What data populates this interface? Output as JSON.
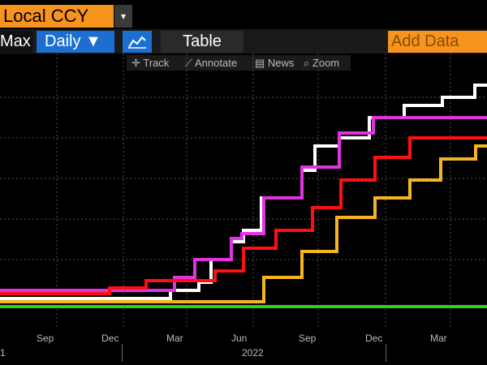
{
  "header": {
    "currency_field": "Local CCY",
    "currency_dropdown_icon": "triangle-down-icon"
  },
  "toolbar": {
    "range_label": "Max",
    "frequency_label": "Daily ▼",
    "chart_toggle_icon": "line-chart-icon",
    "table_label": "Table",
    "add_data_label": "Add Data"
  },
  "subtools": {
    "track": "Track",
    "annotate": "Annotate",
    "news": "News",
    "zoom": "Zoom"
  },
  "axis": {
    "month_ticks": [
      "Sep",
      "Dec",
      "Mar",
      "Jun",
      "Sep",
      "Dec",
      "Mar"
    ],
    "year_label": "2022",
    "left_partial_year": "1"
  },
  "colors": {
    "white": "#ffffff",
    "magenta": "#e233e2",
    "red": "#ff1010",
    "orange": "#f5b51e",
    "green": "#33cc22",
    "accent": "#f7941d",
    "blue": "#1c6fd1"
  },
  "chart_data": {
    "type": "line",
    "series": [
      {
        "x": [
          0,
          210,
          210,
          245,
          245,
          260,
          260,
          285,
          285,
          300,
          300,
          322,
          322,
          340,
          340,
          372,
          372,
          388,
          388,
          418,
          418,
          455,
          455,
          498,
          498,
          545,
          545,
          585,
          585,
          600
        ],
        "y": [
          368,
          368,
          358,
          358,
          348,
          348,
          320,
          320,
          298,
          298,
          284,
          284,
          244,
          244,
          244,
          244,
          210,
          210,
          180,
          180,
          170,
          170,
          145,
          145,
          130,
          130,
          120,
          120,
          105,
          105
        ]
      },
      {
        "x": [
          0,
          135,
          135,
          215,
          215,
          240,
          240,
          285,
          285,
          298,
          298,
          325,
          325,
          372,
          372,
          418,
          418,
          460,
          460,
          600
        ],
        "y": [
          358,
          358,
          358,
          358,
          342,
          342,
          320,
          320,
          294,
          294,
          288,
          288,
          244,
          244,
          206,
          206,
          164,
          164,
          145,
          145
        ]
      },
      {
        "x": [
          0,
          135,
          135,
          180,
          180,
          265,
          265,
          300,
          300,
          340,
          340,
          385,
          385,
          420,
          420,
          462,
          462,
          505,
          505,
          600
        ],
        "y": [
          362,
          362,
          355,
          355,
          346,
          346,
          334,
          334,
          306,
          306,
          284,
          284,
          256,
          256,
          222,
          222,
          194,
          194,
          170,
          170
        ]
      },
      {
        "x": [
          0,
          325,
          325,
          372,
          372,
          415,
          415,
          462,
          462,
          505,
          505,
          543,
          543,
          586,
          586,
          600
        ],
        "y": [
          372,
          372,
          342,
          342,
          310,
          310,
          268,
          268,
          244,
          244,
          222,
          222,
          196,
          196,
          180,
          180
        ]
      },
      {
        "x": [
          0,
          600
        ],
        "y": [
          378,
          378
        ]
      }
    ]
  }
}
